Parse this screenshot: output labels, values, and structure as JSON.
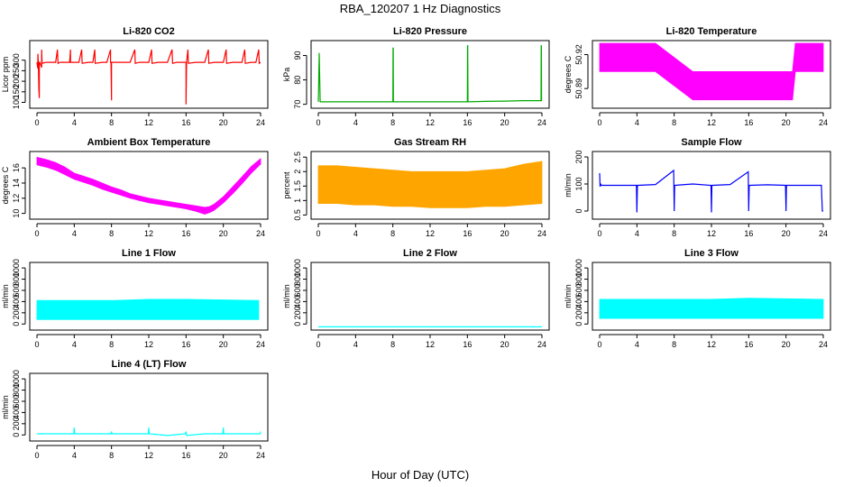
{
  "figure": {
    "title": "RBA_120207  1 Hz Diagnostics",
    "xlabel": "Hour of Day (UTC)"
  },
  "chart_data": [
    {
      "type": "line",
      "title": "Li-820 CO2",
      "ylabel": "Licor ppm",
      "color": "#ff0000",
      "xlim": [
        0,
        24
      ],
      "ylim": [
        85,
        380
      ],
      "x_ticks": [
        0,
        4,
        8,
        12,
        16,
        20,
        24
      ],
      "y_ticks": [
        100,
        150,
        200,
        250,
        300
      ],
      "series": [
        {
          "x": [
            0,
            0.1,
            0.1,
            0.15,
            0.2,
            0.25,
            0.25,
            0.3,
            0.5,
            0.5,
            0.55,
            1,
            1.5,
            2,
            2.2,
            2.2,
            2.25,
            2.5,
            3,
            3.5,
            3.6,
            3.6,
            3.65,
            4,
            4.5,
            4.8,
            4.8,
            4.85,
            5.5,
            6,
            6.2,
            6.2,
            6.25,
            7,
            7.5,
            7.9,
            7.9,
            7.95,
            8,
            8,
            8.05,
            8.5,
            9,
            9.5,
            10,
            10.5,
            10.5,
            10.55,
            11,
            11.5,
            12,
            12.3,
            12.3,
            12.35,
            13,
            13.5,
            14,
            14.5,
            14.5,
            14.55,
            15,
            15.5,
            16,
            16,
            16.05,
            16.2,
            16.2,
            16.25,
            17,
            17.5,
            18,
            18.4,
            18.4,
            18.45,
            19,
            19.5,
            20,
            20.3,
            20.3,
            20.35,
            21,
            21.5,
            22,
            22.3,
            22.3,
            22.35,
            23,
            23.5,
            23.8,
            23.8,
            23.85,
            24
          ],
          "y": [
            290,
            260,
            330,
            290,
            160,
            120,
            290,
            290,
            265,
            350,
            285,
            290,
            290,
            290,
            350,
            350,
            285,
            290,
            290,
            290,
            350,
            290,
            290,
            290,
            290,
            350,
            350,
            285,
            290,
            290,
            350,
            350,
            285,
            290,
            290,
            350,
            290,
            290,
            110,
            290,
            290,
            290,
            290,
            290,
            290,
            350,
            350,
            285,
            290,
            290,
            290,
            350,
            350,
            285,
            290,
            290,
            290,
            350,
            350,
            285,
            290,
            290,
            290,
            90,
            290,
            350,
            350,
            285,
            290,
            290,
            290,
            350,
            350,
            285,
            290,
            290,
            290,
            350,
            350,
            285,
            290,
            290,
            290,
            350,
            350,
            285,
            290,
            290,
            350,
            350,
            285,
            290
          ]
        }
      ]
    },
    {
      "type": "line",
      "title": "Li-820 Pressure",
      "ylabel": "kPa",
      "color": "#00aa00",
      "xlim": [
        0,
        24
      ],
      "ylim": [
        69.5,
        95
      ],
      "x_ticks": [
        0,
        4,
        8,
        12,
        16,
        20,
        24
      ],
      "y_ticks": [
        70,
        80,
        90
      ],
      "series": [
        {
          "x": [
            0,
            0.05,
            0.1,
            0.15,
            0.2,
            2,
            4,
            6,
            8,
            8.02,
            8.04,
            8.06,
            10,
            12,
            14,
            16,
            16.02,
            16.04,
            16.06,
            18,
            20,
            22,
            23.9,
            23.92,
            23.94,
            23.96,
            24
          ],
          "y": [
            71,
            80,
            91,
            80,
            71,
            71,
            71,
            71,
            71,
            93,
            93,
            71,
            71,
            71,
            71,
            71,
            94,
            94,
            71,
            71.2,
            71.3,
            71.5,
            71.5,
            94,
            94,
            71.5,
            71.5
          ]
        }
      ]
    },
    {
      "type": "area",
      "title": "Li-820 Temperature",
      "ylabel": "degrees C",
      "color": "#ff00ff",
      "xlim": [
        0,
        24
      ],
      "ylim": [
        50.875,
        50.93
      ],
      "x_ticks": [
        0,
        4,
        8,
        12,
        16,
        20,
        24
      ],
      "y_ticks": [
        50.89,
        50.92
      ],
      "series": [
        {
          "x": [
            0,
            3,
            5,
            6,
            10,
            14,
            18,
            20,
            20.7,
            21,
            24
          ],
          "low": [
            50.905,
            50.905,
            50.905,
            50.905,
            50.88,
            50.88,
            50.88,
            50.88,
            50.88,
            50.905,
            50.905
          ],
          "high": [
            50.93,
            50.93,
            50.93,
            50.93,
            50.905,
            50.905,
            50.905,
            50.905,
            50.905,
            50.93,
            50.93
          ]
        }
      ]
    },
    {
      "type": "area",
      "title": "Ambient Box Temperature",
      "ylabel": "degrees C",
      "color": "#ff00ff",
      "xlim": [
        0,
        24
      ],
      "ylim": [
        9.6,
        17.8
      ],
      "x_ticks": [
        0,
        4,
        8,
        12,
        16,
        20,
        24
      ],
      "y_ticks": [
        10,
        12,
        14,
        16
      ],
      "series": [
        {
          "x": [
            0,
            1,
            2,
            3,
            4,
            5,
            6,
            7,
            8,
            9,
            10,
            11,
            12,
            13,
            14,
            15,
            16,
            17,
            18,
            18.5,
            19,
            20,
            21,
            22,
            23,
            24
          ],
          "low": [
            16.4,
            16.1,
            15.7,
            15.1,
            14.5,
            14.1,
            13.7,
            13.2,
            12.8,
            12.4,
            12.0,
            11.7,
            11.4,
            11.2,
            11.0,
            10.8,
            10.6,
            10.3,
            9.9,
            10.1,
            10.4,
            11.4,
            12.6,
            13.9,
            15.3,
            16.5
          ],
          "high": [
            17.4,
            17.1,
            16.7,
            16.1,
            15.3,
            14.9,
            14.5,
            14.0,
            13.5,
            13.1,
            12.6,
            12.3,
            12.0,
            11.8,
            11.6,
            11.4,
            11.2,
            11.0,
            10.8,
            10.9,
            11.2,
            12.2,
            13.5,
            14.8,
            16.2,
            17.2
          ]
        }
      ]
    },
    {
      "type": "area",
      "title": "Gas Stream RH",
      "ylabel": "percent",
      "color": "#ffa500",
      "xlim": [
        0,
        24
      ],
      "ylim": [
        0.45,
        2.6
      ],
      "x_ticks": [
        0,
        4,
        8,
        12,
        16,
        20,
        24
      ],
      "y_ticks": [
        0.5,
        1.0,
        1.5,
        2.0,
        2.5
      ],
      "series": [
        {
          "x": [
            0,
            2,
            4,
            6,
            8,
            10,
            12,
            14,
            16,
            18,
            20,
            22,
            24
          ],
          "low": [
            0.9,
            0.9,
            0.85,
            0.85,
            0.8,
            0.8,
            0.75,
            0.75,
            0.75,
            0.8,
            0.8,
            0.85,
            0.9
          ],
          "high": [
            2.2,
            2.2,
            2.15,
            2.1,
            2.05,
            2.0,
            2.0,
            2.0,
            2.0,
            2.05,
            2.1,
            2.25,
            2.35
          ]
        }
      ]
    },
    {
      "type": "line",
      "title": "Sample Flow",
      "ylabel": "ml/min",
      "color": "#0000ff",
      "xlim": [
        0,
        24
      ],
      "ylim": [
        -20,
        210
      ],
      "x_ticks": [
        0,
        4,
        8,
        12,
        16,
        20,
        24
      ],
      "y_ticks": [
        0,
        100,
        200
      ],
      "series": [
        {
          "x": [
            0,
            0.05,
            0.1,
            0.2,
            2,
            3.95,
            4,
            4.05,
            4.1,
            6,
            7.95,
            8,
            8.05,
            8.1,
            10,
            11.95,
            12,
            12.05,
            12.1,
            14,
            15.95,
            16,
            16.05,
            16.1,
            18,
            19.95,
            20,
            20.05,
            20.1,
            22,
            23.8,
            23.9,
            24
          ],
          "y": [
            140,
            90,
            100,
            95,
            95,
            95,
            -5,
            95,
            95,
            98,
            150,
            0,
            95,
            95,
            100,
            95,
            -5,
            95,
            95,
            98,
            145,
            0,
            95,
            95,
            97,
            95,
            0,
            95,
            95,
            95,
            95,
            0,
            0
          ]
        }
      ]
    },
    {
      "type": "area",
      "title": "Line 1 Flow",
      "ylabel": "ml/min",
      "color": "#00ffff",
      "xlim": [
        0,
        24
      ],
      "ylim": [
        -60,
        1050
      ],
      "x_ticks": [
        0,
        4,
        8,
        12,
        16,
        20,
        24
      ],
      "y_ticks": [
        0,
        200,
        400,
        600,
        800,
        1000
      ],
      "series": [
        {
          "x": [
            0,
            4,
            8,
            12,
            16,
            20,
            23.8
          ],
          "low": [
            80,
            80,
            80,
            80,
            80,
            80,
            80
          ],
          "high": [
            420,
            420,
            420,
            440,
            440,
            430,
            420
          ]
        }
      ]
    },
    {
      "type": "line",
      "title": "Line 2 Flow",
      "ylabel": "ml/min",
      "color": "#00ffff",
      "xlim": [
        0,
        24
      ],
      "ylim": [
        -60,
        1050
      ],
      "x_ticks": [
        0,
        4,
        8,
        12,
        16,
        20,
        24
      ],
      "y_ticks": [
        0,
        200,
        400,
        600,
        800,
        1000
      ],
      "series": [
        {
          "x": [
            0,
            24
          ],
          "y": [
            -50,
            -50
          ]
        }
      ]
    },
    {
      "type": "area",
      "title": "Line 3 Flow",
      "ylabel": "ml/min",
      "color": "#00ffff",
      "xlim": [
        0,
        24
      ],
      "ylim": [
        -60,
        1050
      ],
      "x_ticks": [
        0,
        4,
        8,
        12,
        16,
        20,
        24
      ],
      "y_ticks": [
        0,
        200,
        400,
        600,
        800,
        1000
      ],
      "series": [
        {
          "x": [
            0,
            4,
            8,
            12,
            16,
            20,
            24
          ],
          "low": [
            100,
            100,
            100,
            100,
            100,
            100,
            100
          ],
          "high": [
            440,
            440,
            440,
            440,
            460,
            450,
            440
          ]
        }
      ]
    },
    {
      "type": "line",
      "title": "Line 4 (LT) Flow",
      "ylabel": "ml/min",
      "color": "#00ffff",
      "xlim": [
        0,
        24
      ],
      "ylim": [
        -60,
        1050
      ],
      "x_ticks": [
        0,
        4,
        8,
        12,
        16,
        20,
        24
      ],
      "y_ticks": [
        0,
        200,
        400,
        600,
        800,
        1000
      ],
      "series": [
        {
          "x": [
            0,
            2,
            3.95,
            4,
            4.05,
            6,
            7.95,
            8,
            8.05,
            10,
            11.95,
            12,
            12.05,
            14,
            15.95,
            16,
            16.05,
            18,
            19.95,
            20,
            20.05,
            22,
            23.95,
            24
          ],
          "y": [
            20,
            20,
            20,
            130,
            20,
            20,
            20,
            60,
            20,
            20,
            20,
            130,
            20,
            -10,
            20,
            60,
            -10,
            20,
            20,
            130,
            20,
            20,
            20,
            60
          ]
        }
      ]
    }
  ]
}
